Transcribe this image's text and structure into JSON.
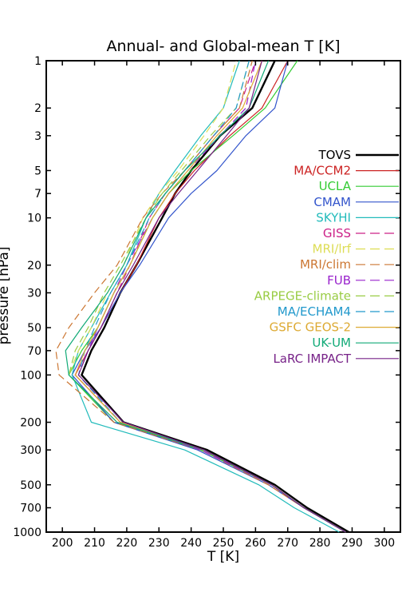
{
  "chart_data": {
    "type": "line",
    "title": "Annual- and Global-mean T [K]",
    "xlabel": "T [K]",
    "ylabel": "pressure [hPa]",
    "xlim": [
      195,
      305
    ],
    "ylim": [
      1000,
      1
    ],
    "yscale": "log",
    "grid": false,
    "legend_placement": "right",
    "xticks": [
      200,
      210,
      220,
      230,
      240,
      250,
      260,
      270,
      280,
      290,
      300
    ],
    "yticks": [
      1000,
      700,
      500,
      300,
      200,
      100,
      70,
      50,
      30,
      20,
      10,
      7,
      5,
      3,
      2,
      1
    ],
    "pressure": [
      1000,
      700,
      500,
      300,
      200,
      100,
      70,
      50,
      30,
      20,
      10,
      7,
      5,
      3,
      2,
      1
    ],
    "series": [
      {
        "name": "TOVS",
        "color": "#000000",
        "dash": "solid",
        "values": [
          289,
          276,
          266,
          245,
          219,
          206,
          209,
          213,
          218,
          223,
          231,
          235,
          240,
          249,
          259,
          266
        ]
      },
      {
        "name": "MA/CCM2",
        "color": "#cc2222",
        "dash": "solid",
        "values": [
          288,
          275,
          265,
          243,
          218,
          204,
          208,
          212,
          218,
          223,
          230,
          235,
          241,
          252,
          262,
          270
        ]
      },
      {
        "name": "UCLA",
        "color": "#33cc33",
        "dash": "solid",
        "values": [
          288,
          275,
          265,
          243,
          216,
          202,
          206,
          211,
          216,
          221,
          228,
          233,
          240,
          253,
          263,
          273
        ]
      },
      {
        "name": "CMAM",
        "color": "#3355cc",
        "dash": "solid",
        "values": [
          288,
          275,
          264,
          242,
          216,
          203,
          207,
          212,
          218,
          224,
          233,
          240,
          248,
          257,
          266,
          270
        ]
      },
      {
        "name": "SKYHI",
        "color": "#22bbbb",
        "dash": "solid",
        "values": [
          286,
          272,
          261,
          238,
          209,
          203,
          205,
          209,
          215,
          220,
          226,
          230,
          235,
          243,
          250,
          255
        ]
      },
      {
        "name": "GISS",
        "color": "#cc2288",
        "dash": "dash",
        "values": [
          288,
          275,
          265,
          244,
          218,
          204,
          208,
          212,
          217,
          221,
          227,
          232,
          238,
          247,
          255,
          260
        ]
      },
      {
        "name": "MRI/lrf",
        "color": "#dddd55",
        "dash": "dash",
        "values": [
          288,
          275,
          265,
          244,
          217,
          202,
          205,
          209,
          214,
          219,
          225,
          230,
          236,
          244,
          250,
          254
        ]
      },
      {
        "name": "MRI/clim",
        "color": "#cc7733",
        "dash": "dash",
        "values": [
          288,
          275,
          264,
          243,
          216,
          199,
          198,
          202,
          210,
          217,
          225,
          231,
          238,
          247,
          255,
          259
        ]
      },
      {
        "name": "FUB",
        "color": "#9922cc",
        "dash": "dash",
        "values": [
          288,
          275,
          265,
          243,
          218,
          205,
          208,
          211,
          216,
          220,
          228,
          233,
          239,
          249,
          257,
          260
        ]
      },
      {
        "name": "ARPEGE-climate",
        "color": "#99cc44",
        "dash": "dash",
        "values": [
          288,
          275,
          265,
          244,
          217,
          202,
          204,
          208,
          213,
          218,
          226,
          231,
          237,
          246,
          254,
          258
        ]
      },
      {
        "name": "MA/ECHAM4",
        "color": "#2299cc",
        "dash": "dash",
        "values": [
          288,
          275,
          265,
          244,
          218,
          205,
          207,
          210,
          215,
          220,
          227,
          232,
          238,
          247,
          254,
          258
        ]
      },
      {
        "name": "GSFC GEOS-2",
        "color": "#ddaa33",
        "dash": "solid",
        "values": [
          288,
          275,
          265,
          244,
          218,
          204,
          207,
          211,
          216,
          221,
          228,
          233,
          239,
          248,
          256,
          262
        ]
      },
      {
        "name": "UK-UM",
        "color": "#11aa77",
        "dash": "solid",
        "values": [
          288,
          275,
          265,
          244,
          217,
          202,
          201,
          206,
          214,
          219,
          226,
          232,
          238,
          249,
          258,
          264
        ]
      },
      {
        "name": "LaRC IMPACT",
        "color": "#772288",
        "dash": "solid",
        "values": [
          288,
          275,
          265,
          244,
          219,
          205,
          208,
          212,
          217,
          222,
          230,
          236,
          242,
          251,
          258,
          262
        ]
      }
    ]
  }
}
